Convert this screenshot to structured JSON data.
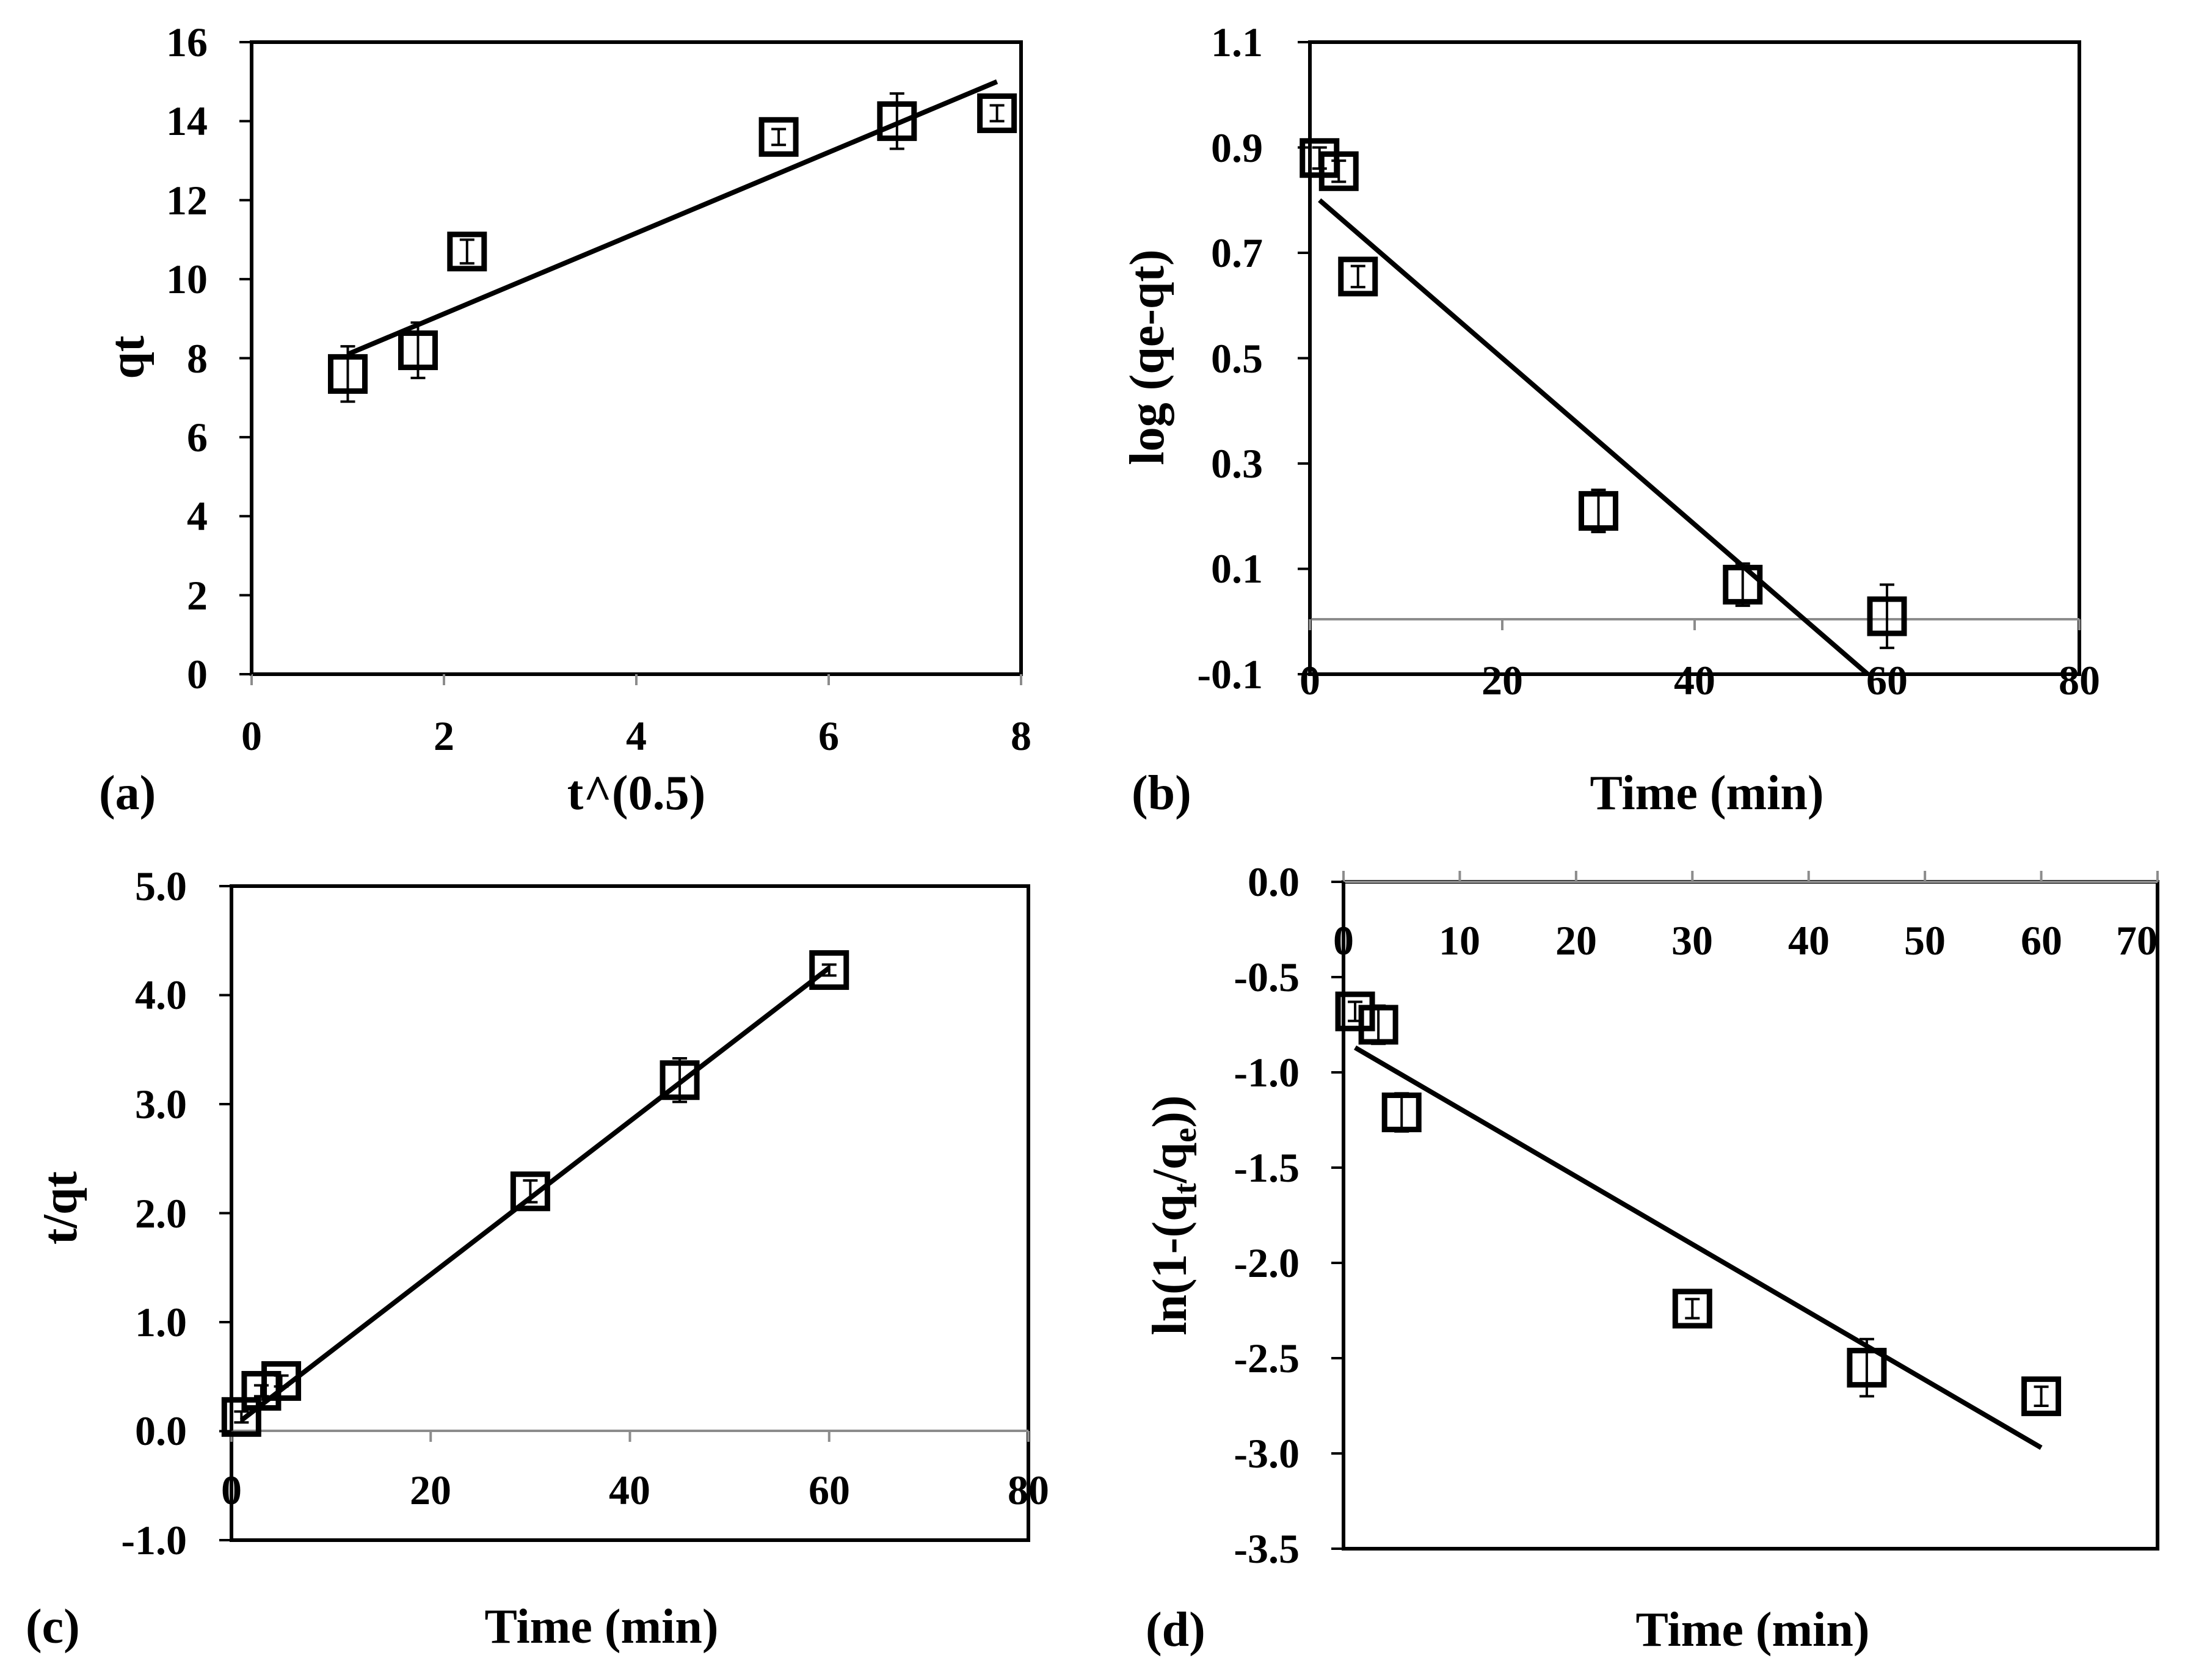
{
  "chart_data": [
    {
      "panel": "(a)",
      "type": "scatter",
      "xlabel": "t^(0.5)",
      "ylabel": "qt",
      "xlim": [
        0,
        8
      ],
      "ylim": [
        0,
        16
      ],
      "xticks": [
        "0",
        "2",
        "4",
        "6",
        "8"
      ],
      "yticks": [
        "0",
        "2",
        "4",
        "6",
        "8",
        "10",
        "12",
        "14",
        "16"
      ],
      "points": [
        {
          "x": 1.0,
          "y": 7.6,
          "err": 0.7
        },
        {
          "x": 1.73,
          "y": 8.2,
          "err": 0.7
        },
        {
          "x": 2.24,
          "y": 10.7,
          "err": 0.3
        },
        {
          "x": 5.48,
          "y": 13.6,
          "err": 0.2
        },
        {
          "x": 6.71,
          "y": 14.0,
          "err": 0.7
        },
        {
          "x": 7.75,
          "y": 14.2,
          "err": 0.2
        }
      ],
      "fit": [
        [
          1.0,
          8.1
        ],
        [
          7.75,
          15.0
        ]
      ]
    },
    {
      "panel": "(b)",
      "type": "scatter",
      "xlabel": "Time (min)",
      "ylabel": "log (qe-qt)",
      "xlim": [
        0,
        80
      ],
      "ylim": [
        -0.1,
        1.1
      ],
      "xticks": [
        "0",
        "20",
        "40",
        "60",
        "80"
      ],
      "yticks": [
        "-0.1",
        "0.1",
        "0.3",
        "0.5",
        "0.7",
        "0.9",
        "1.1"
      ],
      "points": [
        {
          "x": 1,
          "y": 0.88,
          "err": 0.02
        },
        {
          "x": 3,
          "y": 0.855,
          "err": 0.02
        },
        {
          "x": 5,
          "y": 0.655,
          "err": 0.02
        },
        {
          "x": 30,
          "y": 0.21,
          "err": 0.04
        },
        {
          "x": 45,
          "y": 0.07,
          "err": 0.04
        },
        {
          "x": 60,
          "y": 0.01,
          "err": 0.06
        }
      ],
      "fit": [
        [
          1,
          0.8
        ],
        [
          58,
          -0.1
        ]
      ]
    },
    {
      "panel": "(c)",
      "type": "scatter",
      "xlabel": "Time (min)",
      "ylabel": "t/qt",
      "xlim": [
        0,
        80
      ],
      "ylim": [
        -1.0,
        5.0
      ],
      "xticks": [
        "0",
        "20",
        "40",
        "60",
        "80"
      ],
      "yticks": [
        "-1.0",
        "0.0",
        "1.0",
        "2.0",
        "3.0",
        "4.0",
        "5.0"
      ],
      "points": [
        {
          "x": 1,
          "y": 0.13,
          "err": 0.05
        },
        {
          "x": 3,
          "y": 0.37,
          "err": 0.05
        },
        {
          "x": 5,
          "y": 0.46,
          "err": 0.05
        },
        {
          "x": 30,
          "y": 2.2,
          "err": 0.1
        },
        {
          "x": 45,
          "y": 3.22,
          "err": 0.2
        },
        {
          "x": 60,
          "y": 4.23,
          "err": 0.05
        }
      ],
      "fit": [
        [
          1,
          0.1
        ],
        [
          60,
          4.25
        ]
      ]
    },
    {
      "panel": "(d)",
      "type": "scatter",
      "xlabel": "Time (min)",
      "ylabel": "ln(1-(q",
      "ylabel_sub1": "t",
      "ylabel_mid": "/q",
      "ylabel_sub2": "e",
      "ylabel_end": "))",
      "xlim": [
        0,
        70
      ],
      "ylim": [
        -3.5,
        0.0
      ],
      "xticks": [
        "0",
        "10",
        "20",
        "30",
        "40",
        "50",
        "60",
        "70"
      ],
      "yticks": [
        "0.0",
        "-0.5",
        "-1.0",
        "-1.5",
        "-2.0",
        "-2.5",
        "-3.0",
        "-3.5"
      ],
      "points": [
        {
          "x": 1,
          "y": -0.68,
          "err": 0.05
        },
        {
          "x": 3,
          "y": -0.75,
          "err": 0.1
        },
        {
          "x": 5,
          "y": -1.21,
          "err": 0.1
        },
        {
          "x": 30,
          "y": -2.24,
          "err": 0.05
        },
        {
          "x": 45,
          "y": -2.55,
          "err": 0.15
        },
        {
          "x": 60,
          "y": -2.7,
          "err": 0.05
        }
      ],
      "fit": [
        [
          1,
          -0.87
        ],
        [
          60,
          -2.97
        ]
      ]
    }
  ]
}
